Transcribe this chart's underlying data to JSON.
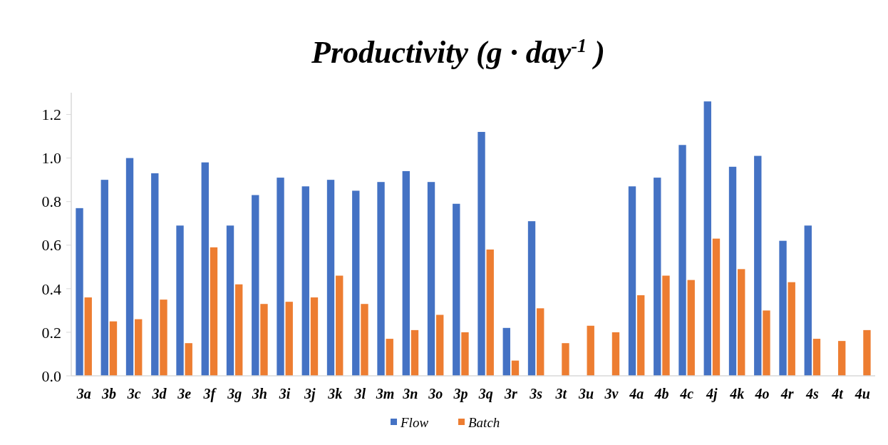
{
  "chart_data": {
    "type": "bar",
    "title": "Productivity (g · day$^{-1}$ )",
    "categories": [
      "3a",
      "3b",
      "3c",
      "3d",
      "3e",
      "3f",
      "3g",
      "3h",
      "3i",
      "3j",
      "3k",
      "3l",
      "3m",
      "3n",
      "3o",
      "3p",
      "3q",
      "3r",
      "3s",
      "3t",
      "3u",
      "3v",
      "4a",
      "4b",
      "4c",
      "4j",
      "4k",
      "4o",
      "4r",
      "4s",
      "4t",
      "4u"
    ],
    "series": [
      {
        "name": "Flow",
        "color": "#4472c4",
        "values": [
          0.77,
          0.9,
          1.0,
          0.93,
          0.69,
          0.98,
          0.69,
          0.83,
          0.91,
          0.87,
          0.9,
          0.85,
          0.89,
          0.94,
          0.89,
          0.79,
          1.12,
          0.22,
          0.71,
          null,
          null,
          null,
          0.87,
          0.91,
          1.06,
          1.26,
          0.96,
          1.01,
          0.62,
          0.69,
          null,
          null
        ]
      },
      {
        "name": "Batch",
        "color": "#ed7d31",
        "values": [
          0.36,
          0.25,
          0.26,
          0.35,
          0.15,
          0.59,
          0.42,
          0.33,
          0.34,
          0.36,
          0.46,
          0.33,
          0.17,
          0.21,
          0.28,
          0.2,
          0.58,
          0.07,
          0.31,
          0.15,
          0.23,
          0.2,
          0.37,
          0.46,
          0.44,
          0.63,
          0.49,
          0.3,
          0.43,
          0.17,
          0.16,
          0.21
        ]
      }
    ],
    "ylim": [
      0,
      1.3
    ],
    "yticks": [
      {
        "value": 0,
        "label": "0.0"
      },
      {
        "value": 0.2,
        "label": "0.2"
      },
      {
        "value": 0.4,
        "label": "0.4"
      },
      {
        "value": 0.6,
        "label": "0.6"
      },
      {
        "value": 0.8,
        "label": "0.8"
      },
      {
        "value": 1,
        "label": "1.0"
      },
      {
        "value": 1.2,
        "label": "1.2"
      }
    ],
    "legend": "bottom"
  }
}
